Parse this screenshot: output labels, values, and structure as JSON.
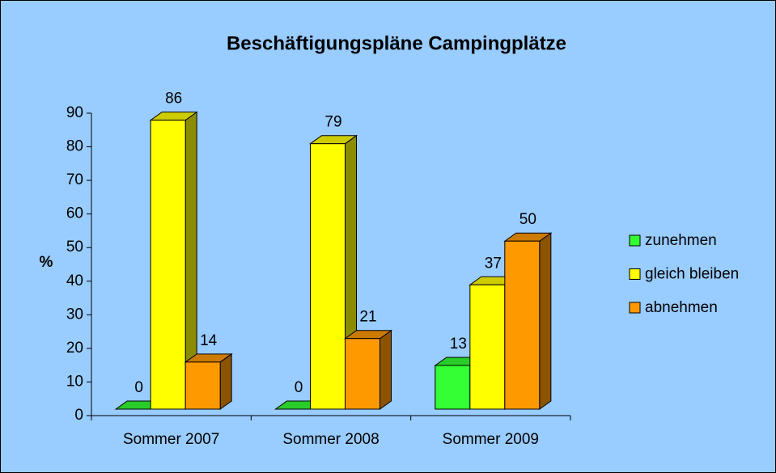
{
  "chart_data": {
    "type": "bar3d",
    "title": "Beschäftigungspläne Campingplätze",
    "y_label": "%",
    "categories": [
      "Sommer 2007",
      "Sommer 2008",
      "Sommer 2009"
    ],
    "series": [
      {
        "name": "zunehmen",
        "color": "#33ff33",
        "values": [
          0,
          0,
          13
        ]
      },
      {
        "name": "gleich bleiben",
        "color": "#ffff00",
        "values": [
          86,
          79,
          37
        ]
      },
      {
        "name": "abnehmen",
        "color": "#ff9900",
        "values": [
          14,
          21,
          50
        ]
      }
    ],
    "ylim": [
      0,
      90
    ],
    "yticks": [
      0,
      10,
      20,
      30,
      40,
      50,
      60,
      70,
      80,
      90
    ],
    "legend": "right"
  }
}
